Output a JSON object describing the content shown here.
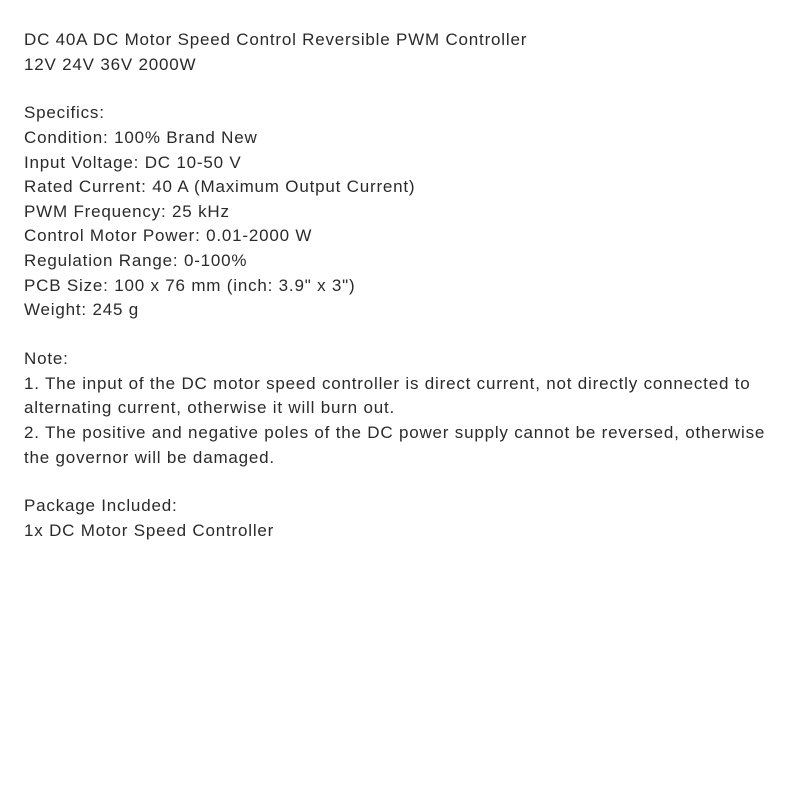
{
  "title": {
    "line1": "DC 40A DC Motor Speed Control Reversible PWM Controller",
    "line2": "12V 24V 36V 2000W"
  },
  "specifics": {
    "heading": "Specifics:",
    "condition": "Condition: 100% Brand New",
    "input_voltage": "Input Voltage: DC 10-50 V",
    "rated_current": "Rated Current: 40 A (Maximum Output Current)",
    "pwm_frequency": "PWM Frequency: 25 kHz",
    "control_motor_power": "Control Motor Power: 0.01-2000 W",
    "regulation_range": "Regulation Range: 0-100%",
    "pcb_size": "PCB Size: 100 x 76 mm (inch: 3.9\" x 3\")",
    "weight": "Weight: 245 g"
  },
  "note": {
    "heading": "Note:",
    "item1": "1. The input of the DC motor speed controller is direct current, not directly connected to alternating current, otherwise it will burn out.",
    "item2": "2. The positive and negative poles of the DC power supply cannot be reversed, otherwise the governor will be damaged."
  },
  "package": {
    "heading": "Package Included:",
    "item1": "1x DC Motor Speed Controller"
  }
}
